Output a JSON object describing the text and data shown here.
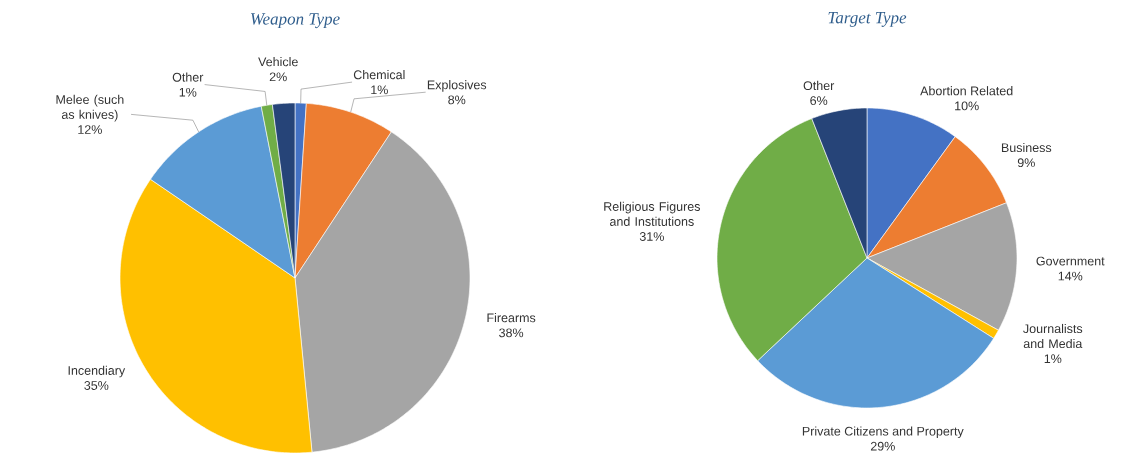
{
  "chart_data": [
    {
      "type": "pie",
      "title": "Weapon Type",
      "categories": [
        "Chemical",
        "Explosives",
        "Firearms",
        "Incendiary",
        "Melee (such as knives)",
        "Other",
        "Vehicle"
      ],
      "values": [
        1,
        8,
        38,
        35,
        12,
        1,
        2
      ],
      "value_labels": [
        "1%",
        "8%",
        "38%",
        "35%",
        "12%",
        "1%",
        "2%"
      ],
      "colors": [
        "#4472c4",
        "#ed7d31",
        "#a5a5a5",
        "#ffc000",
        "#5b9bd5",
        "#70ad47",
        "#264478"
      ]
    },
    {
      "type": "pie",
      "title": "Target Type",
      "categories": [
        "Abortion Related",
        "Business",
        "Government",
        "Journalists and Media",
        "Private Citizens and Property",
        "Religious Figures and Institutions",
        "Other"
      ],
      "values": [
        10,
        9,
        14,
        1,
        29,
        31,
        6
      ],
      "value_labels": [
        "10%",
        "9%",
        "14%",
        "1%",
        "29%",
        "31%",
        "6%"
      ],
      "colors": [
        "#4472c4",
        "#ed7d31",
        "#a5a5a5",
        "#ffc000",
        "#5b9bd5",
        "#70ad47",
        "#264478"
      ]
    }
  ]
}
